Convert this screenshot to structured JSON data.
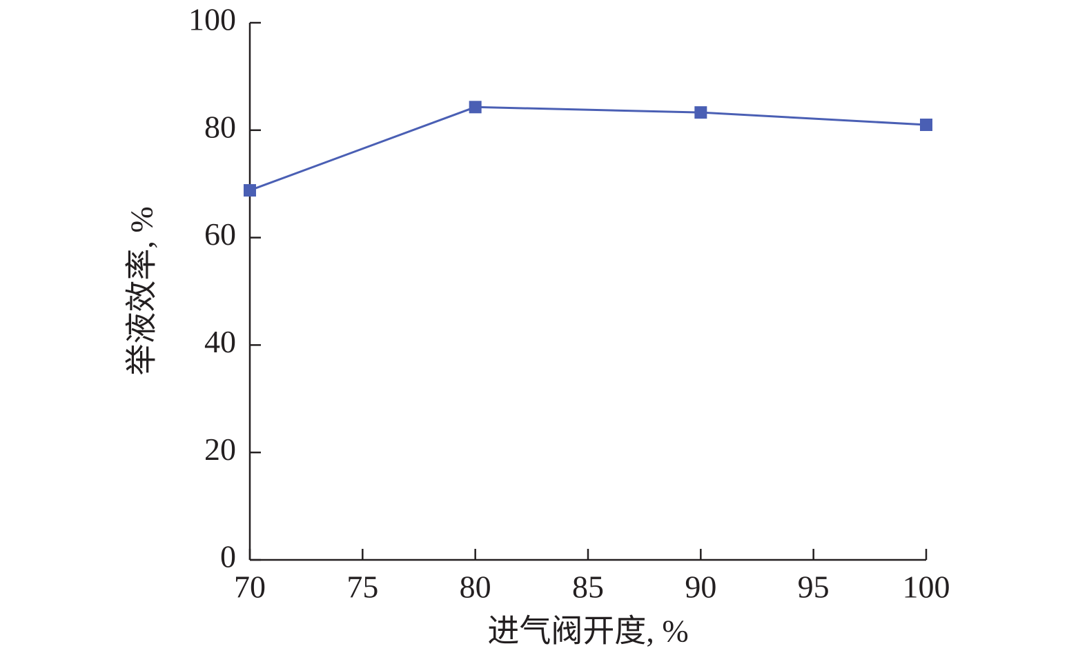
{
  "chart_data": {
    "type": "line",
    "x_label": "进气阀开度, %",
    "y_label": "举液效率, %",
    "x": [
      70,
      80,
      90,
      100
    ],
    "series": [
      {
        "color": "#4a5fb4",
        "values": [
          68.8,
          84.3,
          83.3,
          81.0
        ]
      }
    ],
    "xlim": [
      70,
      100
    ],
    "xticks": [
      70,
      75,
      80,
      85,
      90,
      95,
      100
    ],
    "ylim": [
      0,
      100
    ],
    "yticks": [
      0,
      20,
      40,
      60,
      80,
      100
    ],
    "grid": false,
    "marker": "square"
  }
}
